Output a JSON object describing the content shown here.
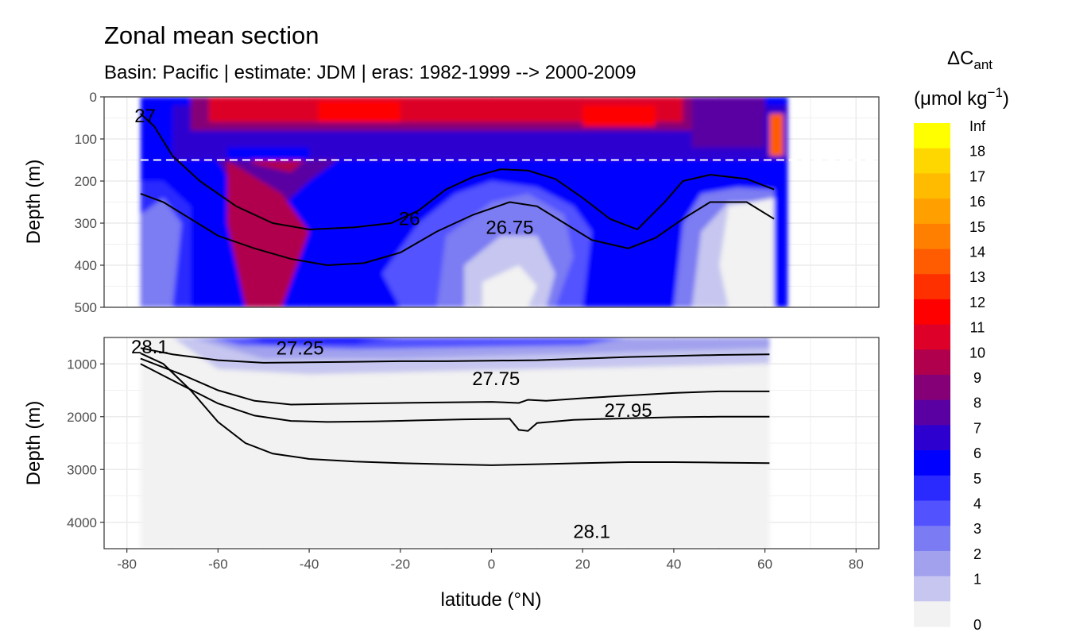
{
  "title": "Zonal mean section",
  "subtitle": "Basin: Pacific | estimate: JDM  | eras: 1982-1999 --> 2000-2009",
  "chart_data": {
    "type": "heatmap",
    "title": "Zonal mean section",
    "subtitle": "Basin: Pacific | estimate: JDM  | eras: 1982-1999 --> 2000-2009",
    "xlabel": "latitude (°N)",
    "ylabel": "Depth (m)",
    "x_range": [
      -85,
      85
    ],
    "x_ticks": [
      "-80",
      "-60",
      "-40",
      "-20",
      "0",
      "20",
      "40",
      "60",
      "80"
    ],
    "x_tick_values": [
      -80,
      -60,
      -40,
      -20,
      0,
      20,
      40,
      60,
      80
    ],
    "data_lat_range": [
      -77,
      65
    ],
    "grid": true,
    "y_reversed": true,
    "panels": [
      {
        "name": "upper",
        "ylim": [
          0,
          500
        ],
        "y_ticks": [
          "0",
          "100",
          "200",
          "300",
          "400",
          "500"
        ],
        "y_tick_values": [
          0,
          100,
          200,
          300,
          400,
          500
        ],
        "reference_line_depth": 150,
        "contours": [
          {
            "level": "26",
            "points": [
              [
                -77,
                40
              ],
              [
                -74,
                70
              ],
              [
                -70,
                140
              ],
              [
                -64,
                200
              ],
              [
                -56,
                260
              ],
              [
                -48,
                300
              ],
              [
                -40,
                315
              ],
              [
                -30,
                310
              ],
              [
                -22,
                300
              ],
              [
                -16,
                270
              ],
              [
                -10,
                220
              ],
              [
                -4,
                190
              ],
              [
                2,
                172
              ],
              [
                8,
                175
              ],
              [
                14,
                195
              ],
              [
                20,
                240
              ],
              [
                26,
                290
              ],
              [
                32,
                315
              ],
              [
                38,
                250
              ],
              [
                42,
                200
              ],
              [
                48,
                185
              ],
              [
                56,
                195
              ],
              [
                62,
                220
              ]
            ]
          },
          {
            "level": "26.75",
            "points": [
              [
                -77,
                230
              ],
              [
                -72,
                250
              ],
              [
                -66,
                290
              ],
              [
                -60,
                330
              ],
              [
                -52,
                360
              ],
              [
                -44,
                385
              ],
              [
                -36,
                400
              ],
              [
                -28,
                395
              ],
              [
                -20,
                370
              ],
              [
                -12,
                320
              ],
              [
                -4,
                280
              ],
              [
                4,
                250
              ],
              [
                10,
                260
              ],
              [
                16,
                300
              ],
              [
                22,
                340
              ],
              [
                30,
                360
              ],
              [
                36,
                335
              ],
              [
                42,
                290
              ],
              [
                48,
                250
              ],
              [
                56,
                250
              ],
              [
                62,
                290
              ]
            ]
          }
        ],
        "contour_labels": [
          {
            "text": "26",
            "lat": -18,
            "depth": 305
          },
          {
            "text": "26.75",
            "lat": 4,
            "depth": 325
          },
          {
            "text": "27",
            "lat": -76,
            "depth": 60
          }
        ]
      },
      {
        "name": "lower",
        "ylim": [
          500,
          4500
        ],
        "y_ticks": [
          "1000",
          "2000",
          "3000",
          "4000"
        ],
        "y_tick_values": [
          1000,
          2000,
          3000,
          4000
        ],
        "contours": [
          {
            "level": "27.25",
            "points": [
              [
                -77,
                700
              ],
              [
                -70,
                820
              ],
              [
                -60,
                930
              ],
              [
                -50,
                980
              ],
              [
                -40,
                970
              ],
              [
                -30,
                960
              ],
              [
                -20,
                950
              ],
              [
                -10,
                950
              ],
              [
                0,
                940
              ],
              [
                10,
                930
              ],
              [
                20,
                900
              ],
              [
                30,
                870
              ],
              [
                40,
                850
              ],
              [
                50,
                830
              ],
              [
                61,
                820
              ]
            ]
          },
          {
            "level": "27.75",
            "points": [
              [
                -77,
                900
              ],
              [
                -68,
                1200
              ],
              [
                -60,
                1500
              ],
              [
                -52,
                1700
              ],
              [
                -44,
                1770
              ],
              [
                -36,
                1760
              ],
              [
                -20,
                1740
              ],
              [
                -10,
                1730
              ],
              [
                0,
                1720
              ],
              [
                6,
                1740
              ],
              [
                8,
                1680
              ],
              [
                12,
                1700
              ],
              [
                20,
                1650
              ],
              [
                30,
                1600
              ],
              [
                40,
                1550
              ],
              [
                50,
                1520
              ],
              [
                61,
                1520
              ]
            ]
          },
          {
            "level": "27.95",
            "points": [
              [
                -77,
                1000
              ],
              [
                -68,
                1400
              ],
              [
                -60,
                1750
              ],
              [
                -52,
                1980
              ],
              [
                -44,
                2080
              ],
              [
                -36,
                2100
              ],
              [
                -26,
                2090
              ],
              [
                -16,
                2070
              ],
              [
                -6,
                2050
              ],
              [
                4,
                2040
              ],
              [
                6,
                2250
              ],
              [
                8,
                2270
              ],
              [
                10,
                2120
              ],
              [
                18,
                2060
              ],
              [
                30,
                2030
              ],
              [
                40,
                2010
              ],
              [
                50,
                2000
              ],
              [
                61,
                2000
              ]
            ]
          },
          {
            "level": "28.1",
            "points": [
              [
                -77,
                800
              ],
              [
                -72,
                1000
              ],
              [
                -66,
                1500
              ],
              [
                -60,
                2100
              ],
              [
                -54,
                2500
              ],
              [
                -48,
                2700
              ],
              [
                -40,
                2800
              ],
              [
                -30,
                2850
              ],
              [
                -20,
                2880
              ],
              [
                -10,
                2900
              ],
              [
                0,
                2920
              ],
              [
                10,
                2900
              ],
              [
                20,
                2880
              ],
              [
                30,
                2860
              ],
              [
                40,
                2860
              ],
              [
                50,
                2870
              ],
              [
                61,
                2880
              ]
            ]
          }
        ],
        "contour_labels": [
          {
            "text": "28.1",
            "lat": -75,
            "depth": 800
          },
          {
            "text": "27.25",
            "lat": -42,
            "depth": 820
          },
          {
            "text": "27.75",
            "lat": 1,
            "depth": 1400
          },
          {
            "text": "27.95",
            "lat": 30,
            "depth": 2000
          },
          {
            "text": "28.1",
            "lat": 22,
            "depth": 4300
          }
        ]
      }
    ]
  },
  "legend": {
    "title_main": "ΔC",
    "title_sub": "ant",
    "title_unit_pre": "(μmol kg",
    "title_unit_sup": "−1",
    "title_unit_post": ")",
    "bins": [
      {
        "label": "Inf",
        "color": "#ffff00"
      },
      {
        "label": "18",
        "color": "#ffd700"
      },
      {
        "label": "17",
        "color": "#ffbb00"
      },
      {
        "label": "16",
        "color": "#ffa000"
      },
      {
        "label": "15",
        "color": "#ff8000"
      },
      {
        "label": "14",
        "color": "#ff5b00"
      },
      {
        "label": "13",
        "color": "#ff3000"
      },
      {
        "label": "12",
        "color": "#ff0000"
      },
      {
        "label": "11",
        "color": "#dd0028"
      },
      {
        "label": "10",
        "color": "#b0004d"
      },
      {
        "label": "9",
        "color": "#850077"
      },
      {
        "label": "8",
        "color": "#5a00a2"
      },
      {
        "label": "7",
        "color": "#2d00d0"
      },
      {
        "label": "6",
        "color": "#0000ff"
      },
      {
        "label": "5",
        "color": "#2a2aff"
      },
      {
        "label": "4",
        "color": "#5252ff"
      },
      {
        "label": "3",
        "color": "#7b7bf3"
      },
      {
        "label": "2",
        "color": "#a1a1ee"
      },
      {
        "label": "1",
        "color": "#c6c6f0"
      },
      {
        "label": "0",
        "color": "#f2f2f2"
      }
    ]
  }
}
